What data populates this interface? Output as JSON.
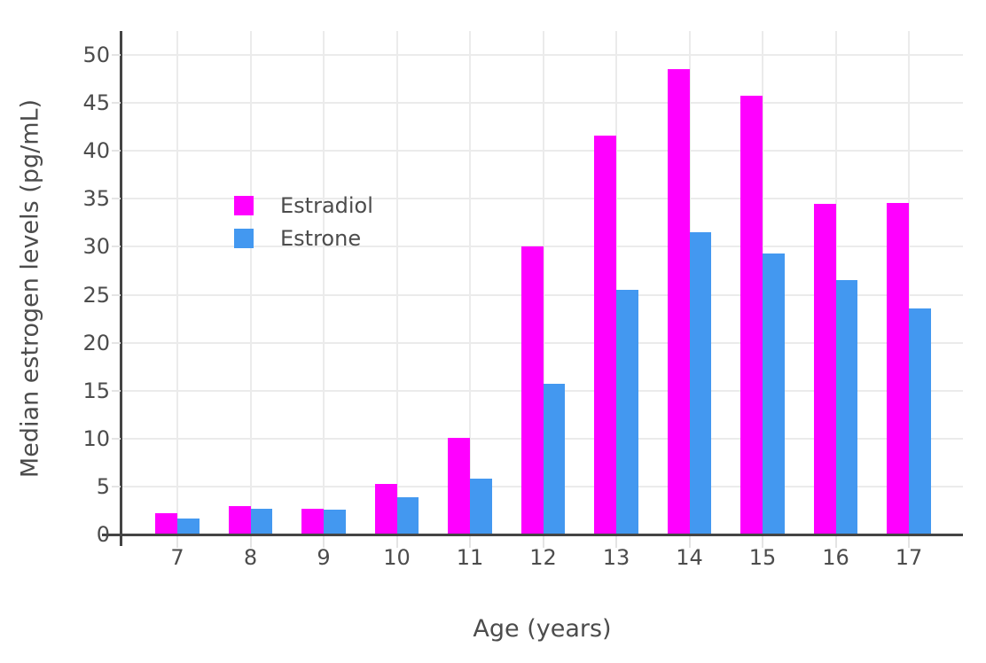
{
  "chart_data": {
    "type": "bar",
    "title": "",
    "xlabel": "Age (years)",
    "ylabel": "Median estrogen levels (pg/mL)",
    "categories": [
      7,
      8,
      9,
      10,
      11,
      12,
      13,
      14,
      15,
      16,
      17
    ],
    "series": [
      {
        "name": "Estradiol",
        "color": "#ff00ff",
        "values": [
          2.2,
          3.0,
          2.7,
          5.3,
          10.1,
          30.0,
          41.6,
          48.5,
          45.8,
          34.5,
          34.6
        ]
      },
      {
        "name": "Estrone",
        "color": "#4398f0",
        "values": [
          1.7,
          2.7,
          2.6,
          3.9,
          5.8,
          15.7,
          25.5,
          31.5,
          29.3,
          26.5,
          23.6
        ]
      }
    ],
    "ylim": [
      0,
      52.5
    ],
    "yticks": [
      0,
      5,
      10,
      15,
      20,
      25,
      30,
      35,
      40,
      45,
      50
    ],
    "grid": true,
    "barmode": "group",
    "legend_position": "inside-upper-left"
  },
  "style_colors": {
    "grid": "#ebebeb",
    "axis_line": "#444444",
    "tick": "#e4e4e4",
    "text": "#4c4c4c",
    "background": "#ffffff"
  }
}
